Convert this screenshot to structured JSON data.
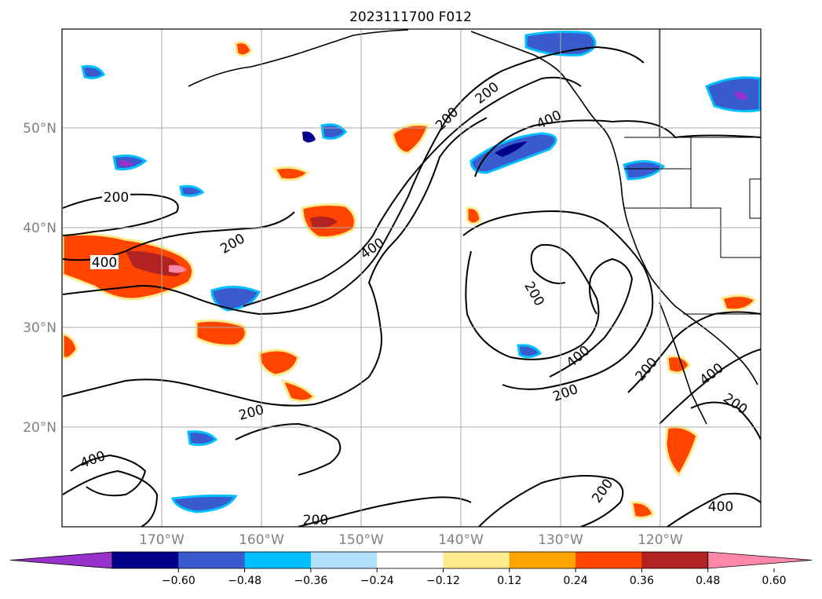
{
  "title": "2023111700 F012",
  "map": {
    "projection": "Plate Carree",
    "lon_range": [
      "180°W",
      "110°W"
    ],
    "lat_range": [
      "10°N",
      "60°N"
    ],
    "lat_labels": [
      "50°N",
      "40°N",
      "30°N",
      "20°N"
    ],
    "lon_labels": [
      "170°W",
      "160°W",
      "150°W",
      "140°W",
      "130°W",
      "120°W"
    ],
    "grid": true
  },
  "contour_labels": [
    "200",
    "400",
    "200",
    "400",
    "200",
    "200",
    "400",
    "400",
    "200",
    "400",
    "200",
    "200",
    "200",
    "400",
    "200",
    "400",
    "200",
    "200",
    "200",
    "400"
  ],
  "colorbar": {
    "ticks": [
      "−0.60",
      "−0.48",
      "−0.36",
      "−0.24",
      "−0.12",
      "0.12",
      "0.24",
      "0.36",
      "0.48",
      "0.60"
    ],
    "colors": [
      "#9932cc",
      "#00008b",
      "#3a5bcd",
      "#00bfff",
      "#b0e0fa",
      "#ffffff",
      "#ffeb8c",
      "#ffa500",
      "#ff4500",
      "#b22222",
      "#ff88aa"
    ],
    "extend": "both"
  }
}
